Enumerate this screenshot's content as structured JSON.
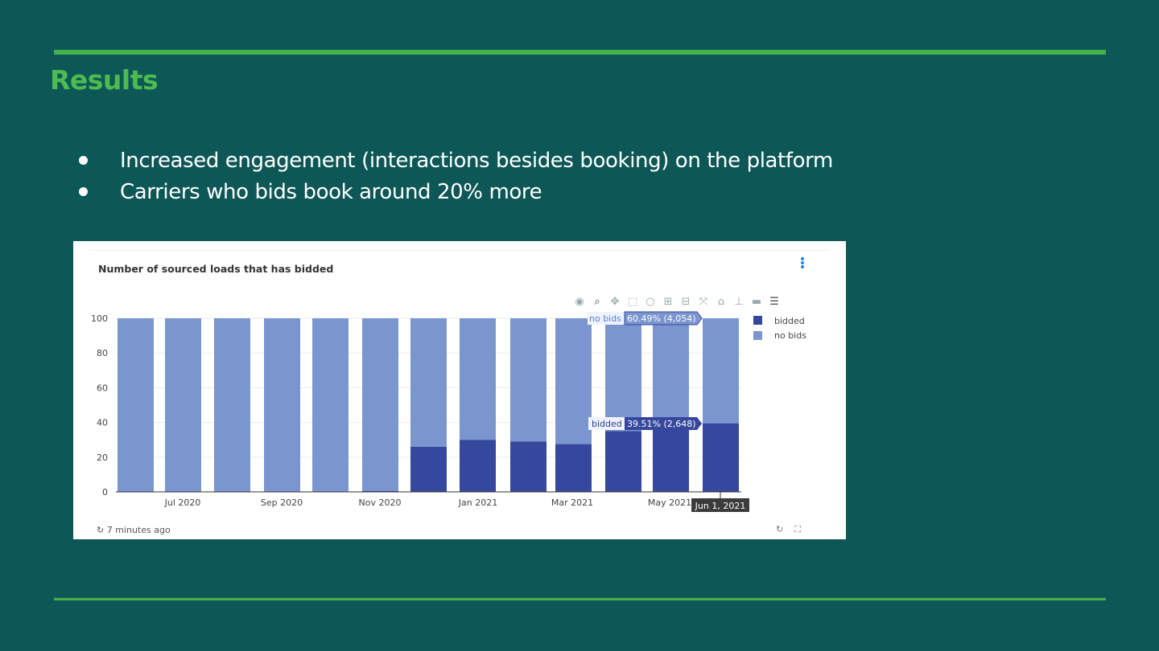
{
  "slide": {
    "title": "Results",
    "bullets": [
      "Increased engagement (interactions besides booking) on the platform",
      "Carriers who bids book around 20% more"
    ]
  },
  "colors": {
    "background": "#0e5757",
    "accent": "#43b34a",
    "bidded": "#36479e",
    "no_bids": "#7b96cf"
  },
  "card": {
    "title": "Number of sourced loads that has bidded",
    "menu_icon": "kebab-menu-icon",
    "updated": "7 minutes ago",
    "refresh_icon": "refresh-icon",
    "expand_icon": "expand-icon",
    "modebar_icons": [
      "camera-icon",
      "zoom-icon",
      "pan-icon",
      "box-select-icon",
      "lasso-icon",
      "zoom-in-icon",
      "zoom-out-icon",
      "autoscale-icon",
      "reset-axes-icon",
      "spike-lines-icon",
      "hover-closest-icon",
      "hover-compare-icon"
    ]
  },
  "chart_data": {
    "type": "bar",
    "stacked": true,
    "ylim": [
      0,
      100
    ],
    "yticks": [
      0,
      20,
      40,
      60,
      80,
      100
    ],
    "xtick_labels": [
      "Jul 2020",
      "Sep 2020",
      "Nov 2020",
      "Jan 2021",
      "Mar 2021",
      "May 2021"
    ],
    "legend_position": "top-right",
    "grid": true,
    "series": [
      {
        "name": "bidded",
        "values": [
          0,
          0,
          0,
          0,
          0,
          0.5,
          26,
          30,
          29,
          27.5,
          35,
          36,
          39.5
        ]
      },
      {
        "name": "no bids",
        "values": [
          100,
          100,
          100,
          100,
          100,
          99.5,
          74,
          70,
          71,
          72.5,
          65,
          64,
          60.5
        ]
      }
    ],
    "hover": {
      "x_label": "Jun 1, 2021",
      "no_bids_label": "no bids",
      "no_bids_value": "60.49% (4,054)",
      "bidded_label": "bidded",
      "bidded_value": "39.51% (2,648)"
    }
  }
}
